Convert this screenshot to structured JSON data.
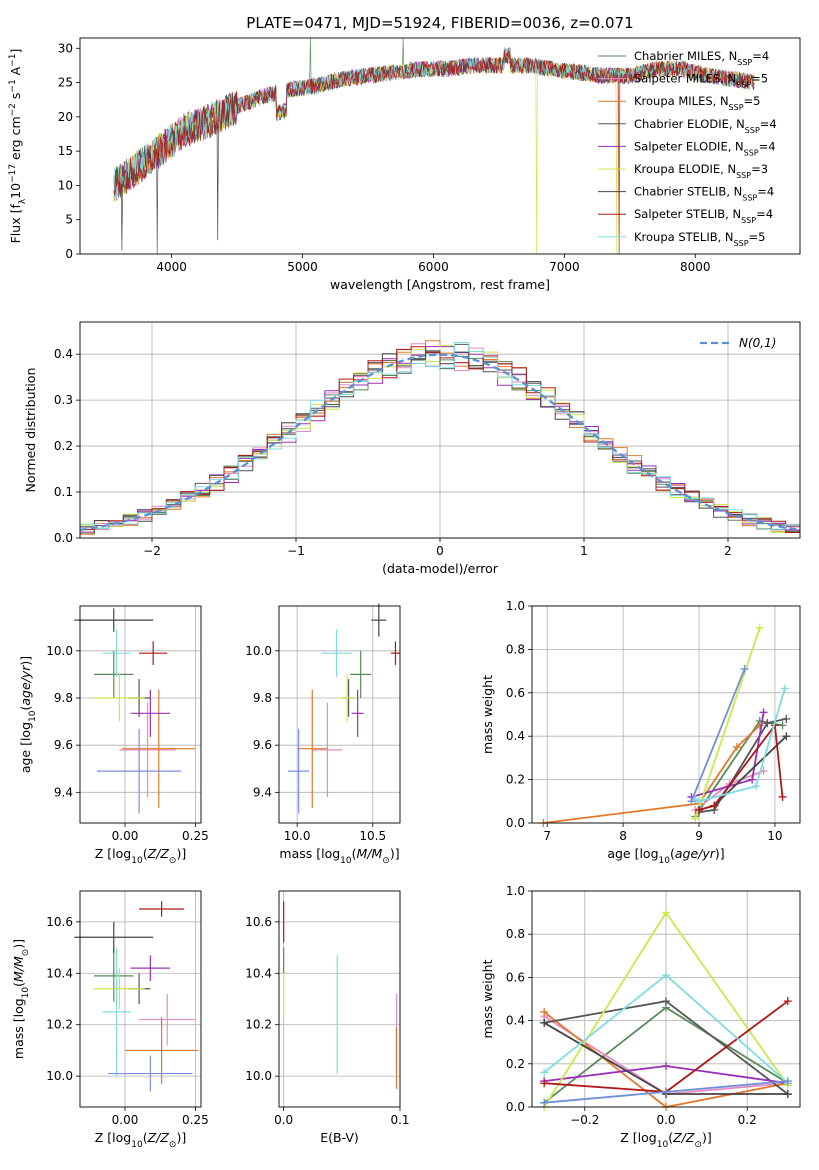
{
  "figure_title": "PLATE=0471, MJD=51924, FIBERID=0036, z=0.071",
  "models": [
    {
      "name": "Chabrier MILES",
      "nssp": "4",
      "color": "#5a8a5a"
    },
    {
      "name": "Salpeter MILES",
      "nssp": "5",
      "color": "#e78ac3"
    },
    {
      "name": "Kroupa MILES",
      "nssp": "5",
      "color": "#e07a2a"
    },
    {
      "name": "Chabrier ELODIE",
      "nssp": "4",
      "color": "#555555"
    },
    {
      "name": "Salpeter ELODIE",
      "nssp": "4",
      "color": "#9b30b8"
    },
    {
      "name": "Kroupa ELODIE",
      "nssp": "3",
      "color": "#c9e84a"
    },
    {
      "name": "Chabrier STELIB",
      "nssp": "4",
      "color": "#444444"
    },
    {
      "name": "Salpeter STELIB",
      "nssp": "4",
      "color": "#b01818"
    },
    {
      "name": "Kroupa STELIB",
      "nssp": "5",
      "color": "#7fdbe0"
    }
  ],
  "chart_data": [
    {
      "id": "spectrum",
      "type": "line",
      "title": "PLATE=0471, MJD=51924, FIBERID=0036, z=0.071",
      "xlabel": "wavelength [Angstrom, rest frame]",
      "ylabel": "Flux [f_λ10^-17 erg cm^-2 s^-1 A^-1]",
      "xlim": [
        3300,
        8800
      ],
      "ylim": [
        0,
        31.5
      ],
      "xticks": [
        4000,
        5000,
        6000,
        7000,
        8000
      ],
      "yticks": [
        0,
        5,
        10,
        15,
        20,
        25,
        30
      ],
      "grid": false,
      "legend": "right",
      "continuum_x": [
        3560,
        3700,
        3900,
        4100,
        4300,
        4500,
        4700,
        4900,
        5100,
        5300,
        5500,
        5700,
        5900,
        6100,
        6300,
        6500,
        6700,
        6900,
        7100,
        7300,
        7500,
        7700,
        7900,
        8100,
        8300,
        8450
      ],
      "continuum_y": [
        10,
        12,
        15,
        18,
        19.5,
        21.5,
        23,
        24,
        24.5,
        25.5,
        26,
        26.5,
        27,
        27,
        27.5,
        27.5,
        27.5,
        27,
        26.5,
        26,
        26,
        27,
        27,
        26,
        25.5,
        25
      ]
    },
    {
      "id": "residuals",
      "type": "bar",
      "xlabel": "(data-model)/error",
      "ylabel": "Normed distribution",
      "xlim": [
        -2.5,
        2.5
      ],
      "ylim": [
        0,
        0.47
      ],
      "xticks": [
        -2,
        -1,
        0,
        1,
        2
      ],
      "yticks": [
        0.0,
        0.1,
        0.2,
        0.3,
        0.4
      ],
      "grid": true,
      "legend": "top-right",
      "reference_label": "N(0,1)",
      "reference_color": "#5b8fd6"
    },
    {
      "id": "age-vs-Z",
      "type": "scatter",
      "xlabel": "Z [log10(Z/Z⊙)]",
      "ylabel": "age [log10(age/yr)]",
      "xlim": [
        -0.16,
        0.27
      ],
      "ylim": [
        9.27,
        10.19
      ],
      "xticks": [
        0.0,
        0.25
      ],
      "yticks": [
        9.4,
        9.6,
        9.8,
        10.0
      ],
      "grid": true,
      "points": [
        {
          "model": 0,
          "x": -0.04,
          "y": 9.9,
          "xerr": 0.07,
          "yerr": 0.1
        },
        {
          "model": 1,
          "x": 0.08,
          "y": 9.58,
          "xerr": 0.1,
          "yerr": 0.2
        },
        {
          "model": 2,
          "x": 0.12,
          "y": 9.585,
          "xerr": 0.13,
          "yerr": 0.25
        },
        {
          "model": 3,
          "x": 0.05,
          "y": 9.8,
          "xerr": 0.04,
          "yerr": 0.08
        },
        {
          "model": 4,
          "x": 0.09,
          "y": 9.735,
          "xerr": 0.07,
          "yerr": 0.1
        },
        {
          "model": 5,
          "x": -0.02,
          "y": 9.8,
          "xerr": 0.09,
          "yerr": 0.1
        },
        {
          "model": 6,
          "x": -0.04,
          "y": 10.13,
          "xerr": 0.14,
          "yerr": 0.05
        },
        {
          "model": 7,
          "x": 0.1,
          "y": 9.99,
          "xerr": 0.05,
          "yerr": 0.05
        },
        {
          "model": 8,
          "x": -0.03,
          "y": 9.99,
          "xerr": 0.05,
          "yerr": 0.1
        },
        {
          "model": "extra",
          "x": 0.05,
          "y": 9.49,
          "xerr": 0.15,
          "yerr": 0.18,
          "color": "#7b8ee0"
        }
      ]
    },
    {
      "id": "age-vs-mass",
      "type": "scatter",
      "xlabel": "mass [log10(M/M⊙)]",
      "ylabel": "",
      "xlim": [
        9.88,
        10.68
      ],
      "ylim": [
        9.27,
        10.19
      ],
      "xticks": [
        10.0,
        10.5
      ],
      "yticks": [
        9.4,
        9.6,
        9.8,
        10.0
      ],
      "grid": true,
      "points": [
        {
          "model": 0,
          "x": 10.42,
          "y": 9.9,
          "xerr": 0.07,
          "yerr": 0.1
        },
        {
          "model": 1,
          "x": 10.2,
          "y": 9.58,
          "xerr": 0.1,
          "yerr": 0.2
        },
        {
          "model": 2,
          "x": 10.1,
          "y": 9.585,
          "xerr": 0.1,
          "yerr": 0.25
        },
        {
          "model": 3,
          "x": 10.34,
          "y": 9.8,
          "xerr": 0.04,
          "yerr": 0.08
        },
        {
          "model": 4,
          "x": 10.4,
          "y": 9.735,
          "xerr": 0.04,
          "yerr": 0.1
        },
        {
          "model": 5,
          "x": 10.33,
          "y": 9.8,
          "xerr": 0.05,
          "yerr": 0.1
        },
        {
          "model": 6,
          "x": 10.54,
          "y": 10.13,
          "xerr": 0.05,
          "yerr": 0.07
        },
        {
          "model": 7,
          "x": 10.65,
          "y": 9.99,
          "xerr": 0.03,
          "yerr": 0.05
        },
        {
          "model": 8,
          "x": 10.26,
          "y": 9.99,
          "xerr": 0.1,
          "yerr": 0.1
        },
        {
          "model": "extra",
          "x": 10.01,
          "y": 9.49,
          "xerr": 0.07,
          "yerr": 0.18,
          "color": "#7b8ee0"
        }
      ]
    },
    {
      "id": "weight-vs-age",
      "type": "line",
      "xlabel": "age [log10(age/yr)]",
      "ylabel": "mass weight",
      "xlim": [
        6.8,
        10.33
      ],
      "ylim": [
        0,
        1.0
      ],
      "xticks": [
        7,
        8,
        9,
        10
      ],
      "yticks": [
        0.0,
        0.2,
        0.4,
        0.6,
        0.8,
        1.0
      ],
      "grid": true,
      "series": [
        {
          "model": 0,
          "x": [
            8.95,
            9.8,
            10.1
          ],
          "y": [
            0.03,
            0.47,
            0.45
          ]
        },
        {
          "model": 1,
          "x": [
            8.95,
            9.4,
            9.85
          ],
          "y": [
            0.06,
            0.18,
            0.24
          ]
        },
        {
          "model": 2,
          "x": [
            6.95,
            9.0,
            9.5,
            9.8
          ],
          "y": [
            0.0,
            0.09,
            0.35,
            0.45
          ]
        },
        {
          "model": 3,
          "x": [
            9.0,
            9.2,
            9.9,
            10.15
          ],
          "y": [
            0.05,
            0.06,
            0.46,
            0.48
          ]
        },
        {
          "model": 4,
          "x": [
            8.9,
            9.7,
            9.85
          ],
          "y": [
            0.12,
            0.2,
            0.51
          ]
        },
        {
          "model": 5,
          "x": [
            8.95,
            9.8
          ],
          "y": [
            0.02,
            0.9
          ]
        },
        {
          "model": 6,
          "x": [
            9.0,
            9.2,
            10.15
          ],
          "y": [
            0.06,
            0.08,
            0.4
          ]
        },
        {
          "model": 7,
          "x": [
            9.0,
            9.2,
            10.0,
            10.1
          ],
          "y": [
            0.06,
            0.08,
            0.45,
            0.12
          ]
        },
        {
          "model": 8,
          "x": [
            8.95,
            9.0,
            9.75,
            10.13
          ],
          "y": [
            0.11,
            0.1,
            0.17,
            0.62
          ]
        },
        {
          "model": "extra",
          "x": [
            8.9,
            9.6
          ],
          "y": [
            0.1,
            0.71
          ],
          "color": "#6f8fd6"
        }
      ]
    },
    {
      "id": "mass-vs-Z",
      "type": "scatter",
      "xlabel": "Z [log10(Z/Z⊙)]",
      "ylabel": "mass [log10(M/M⊙)]",
      "xlim": [
        -0.16,
        0.27
      ],
      "ylim": [
        9.88,
        10.72
      ],
      "xticks": [
        0.0,
        0.25
      ],
      "yticks": [
        10.0,
        10.2,
        10.4,
        10.6
      ],
      "grid": true,
      "points": [
        {
          "model": 0,
          "x": -0.04,
          "y": 10.39,
          "xerr": 0.07,
          "yerr": 0.1
        },
        {
          "model": 1,
          "x": 0.15,
          "y": 10.22,
          "xerr": 0.1,
          "yerr": 0.1
        },
        {
          "model": 2,
          "x": 0.13,
          "y": 10.1,
          "xerr": 0.13,
          "yerr": 0.13
        },
        {
          "model": 3,
          "x": 0.05,
          "y": 10.34,
          "xerr": 0.04,
          "yerr": 0.06
        },
        {
          "model": 4,
          "x": 0.09,
          "y": 10.42,
          "xerr": 0.07,
          "yerr": 0.05
        },
        {
          "model": 5,
          "x": -0.02,
          "y": 10.34,
          "xerr": 0.09,
          "yerr": 0.08
        },
        {
          "model": 6,
          "x": -0.04,
          "y": 10.54,
          "xerr": 0.14,
          "yerr": 0.06
        },
        {
          "model": 7,
          "x": 0.13,
          "y": 10.65,
          "xerr": 0.08,
          "yerr": 0.03
        },
        {
          "model": 8,
          "x": -0.03,
          "y": 10.25,
          "xerr": 0.05,
          "yerr": 0.25
        },
        {
          "model": "extra",
          "x": 0.09,
          "y": 10.01,
          "xerr": 0.15,
          "yerr": 0.07,
          "color": "#7b8ee0"
        }
      ]
    },
    {
      "id": "mass-vs-EBV",
      "type": "scatter",
      "xlabel": "E(B-V)",
      "ylabel": "",
      "xlim": [
        -0.004,
        0.1
      ],
      "ylim": [
        9.88,
        10.72
      ],
      "xticks": [
        0.0,
        0.1
      ],
      "yticks": [
        10.0,
        10.2,
        10.4,
        10.6
      ],
      "grid": true,
      "points": [
        {
          "model": 5,
          "x": 0.0,
          "y": 10.33,
          "xerr": 0.0,
          "yerr": 0.1
        },
        {
          "model": 7,
          "x": 0.0,
          "y": 10.6,
          "xerr": 0.0,
          "yerr": 0.08
        },
        {
          "model": 0,
          "x": 0.0,
          "y": 10.45,
          "xerr": 0.0,
          "yerr": 0.05
        },
        {
          "model": 8,
          "x": 0.046,
          "y": 10.24,
          "xerr": 0.0,
          "yerr": 0.23
        },
        {
          "model": 1,
          "x": 0.097,
          "y": 10.17,
          "xerr": 0.0,
          "yerr": 0.15
        },
        {
          "model": 2,
          "x": 0.097,
          "y": 10.07,
          "xerr": 0.0,
          "yerr": 0.12
        }
      ]
    },
    {
      "id": "weight-vs-Z",
      "type": "line",
      "xlabel": "Z [log10(Z/Z⊙)]",
      "ylabel": "mass weight",
      "xlim": [
        -0.33,
        0.33
      ],
      "ylim": [
        0,
        1.0
      ],
      "xticks": [
        -0.2,
        0.0,
        0.2
      ],
      "yticks": [
        0.0,
        0.2,
        0.4,
        0.6,
        0.8,
        1.0
      ],
      "grid": true,
      "series": [
        {
          "model": 0,
          "x": [
            -0.3,
            0.0,
            0.3
          ],
          "y": [
            0.02,
            0.46,
            0.11
          ]
        },
        {
          "model": 1,
          "x": [
            -0.3,
            0.0,
            0.3
          ],
          "y": [
            0.42,
            0.06,
            0.11
          ]
        },
        {
          "model": 2,
          "x": [
            -0.3,
            0.0,
            0.3
          ],
          "y": [
            0.44,
            0.0,
            0.11
          ]
        },
        {
          "model": 3,
          "x": [
            -0.3,
            0.0,
            0.3
          ],
          "y": [
            0.39,
            0.49,
            0.06
          ]
        },
        {
          "model": 4,
          "x": [
            -0.3,
            0.0,
            0.3
          ],
          "y": [
            0.12,
            0.19,
            0.11
          ]
        },
        {
          "model": 5,
          "x": [
            -0.3,
            0.0,
            0.3
          ],
          "y": [
            0.0,
            0.9,
            0.1
          ]
        },
        {
          "model": 6,
          "x": [
            -0.3,
            0.0,
            0.3
          ],
          "y": [
            0.39,
            0.06,
            0.06
          ]
        },
        {
          "model": 7,
          "x": [
            -0.3,
            0.0,
            0.3
          ],
          "y": [
            0.11,
            0.07,
            0.49
          ]
        },
        {
          "model": 8,
          "x": [
            -0.3,
            0.0,
            0.3
          ],
          "y": [
            0.16,
            0.61,
            0.11
          ]
        },
        {
          "model": "extra",
          "x": [
            -0.3,
            0.0,
            0.3
          ],
          "y": [
            0.02,
            0.07,
            0.12
          ],
          "color": "#6f8fd6"
        }
      ]
    }
  ]
}
